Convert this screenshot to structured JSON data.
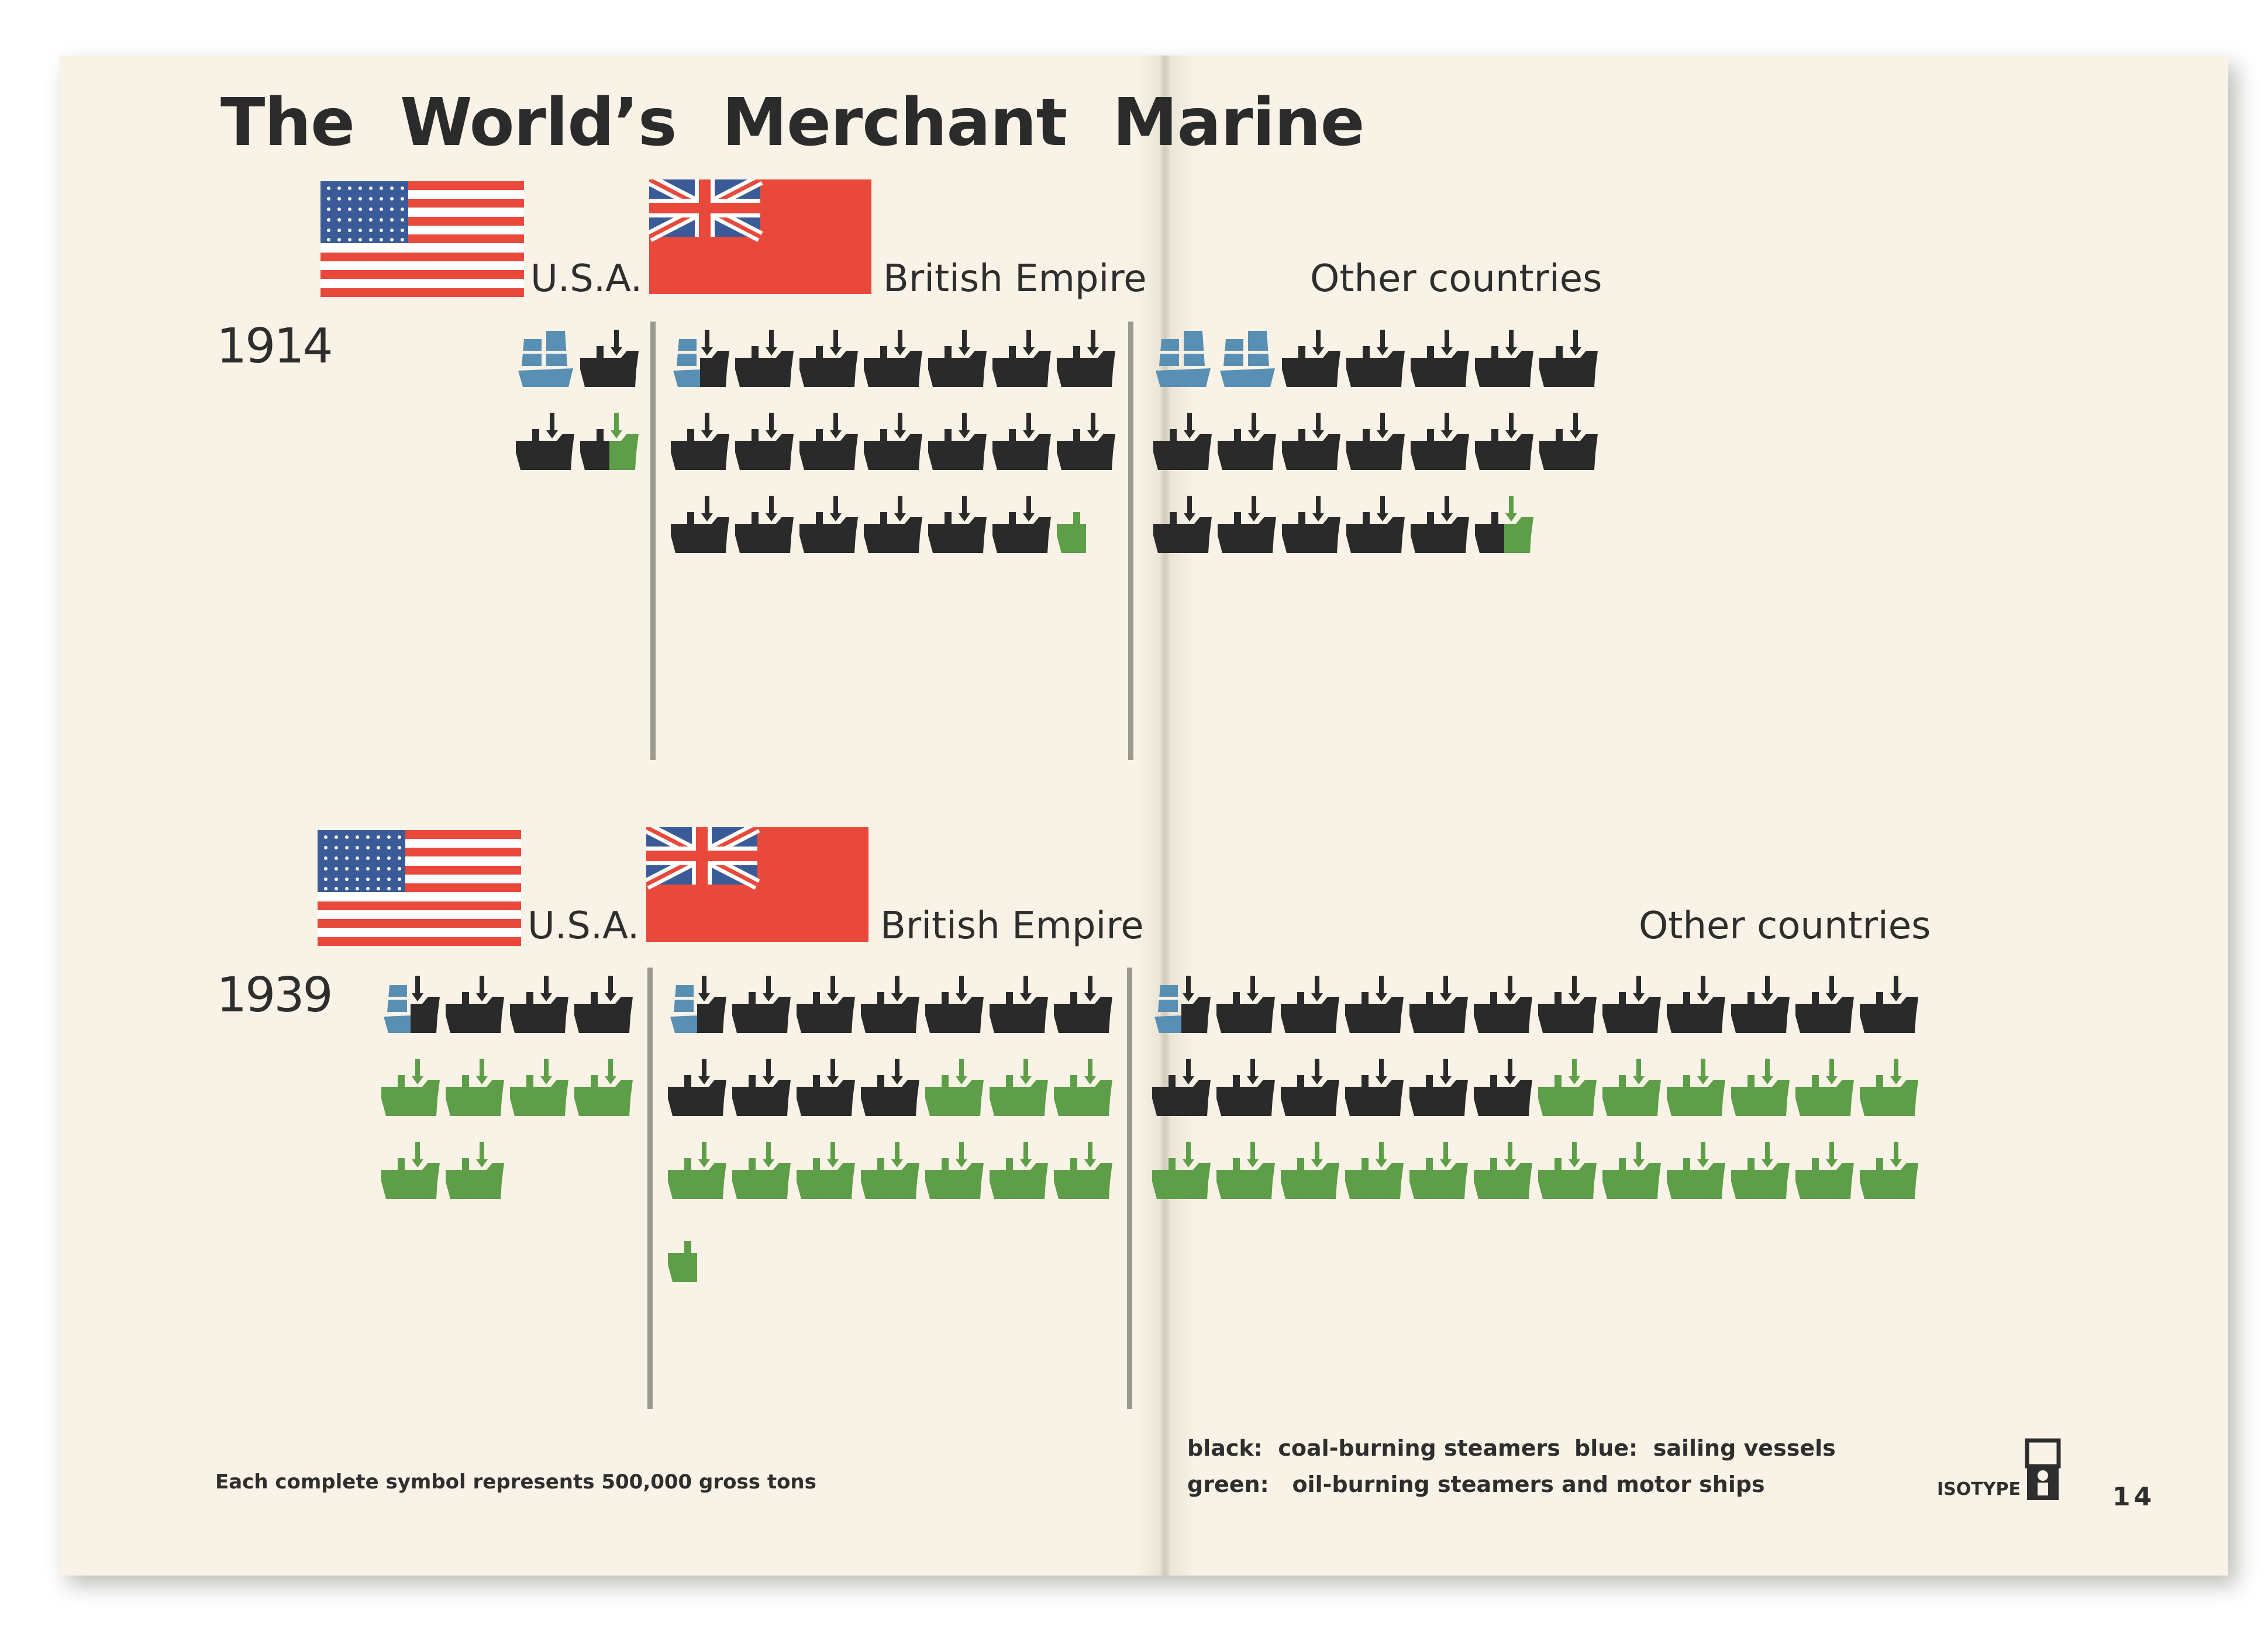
{
  "title": "The World’s Merchant Marine",
  "page_number": "14",
  "isotype_label": "ISOTYPE",
  "footnote": "Each complete symbol represents 500,000 gross tons",
  "legend": {
    "black": {
      "key": "black:",
      "text": "coal-burning steamers"
    },
    "blue": {
      "key": "blue:",
      "text": "sailing vessels"
    },
    "green": {
      "key": "green:",
      "text": "oil-burning steamers and motor ships"
    }
  },
  "colors": {
    "black": "#2a2a2a",
    "blue": "#5a8fb4",
    "green": "#5e9e48",
    "flag_red": "#e8493a",
    "flag_blue": "#3a5b97",
    "divider": "#9a9a90",
    "paper": "#f8f3e6"
  },
  "icons": {
    "steamer": "steamship-icon",
    "sail": "sailing-ship-icon",
    "us_flag": "us-flag-icon",
    "uk_flag": "red-ensign-flag-icon",
    "isotype": "isotype-logo-icon"
  },
  "chart_data": {
    "type": "isotype",
    "unit": "500,000 gross tons",
    "periods": [
      {
        "year": "1914",
        "groups": [
          {
            "label": "U.S.A.",
            "flag": "us",
            "cols": 2,
            "composition": {
              "coal": 2.5,
              "sail": 1.0,
              "oil": 0.5
            }
          },
          {
            "label": "British Empire",
            "flag": "uk",
            "cols": 7,
            "composition": {
              "coal": 19.5,
              "sail": 0.5,
              "oil": 0.5
            }
          },
          {
            "label": "Other countries",
            "flag": null,
            "cols": 7,
            "composition": {
              "coal": 17.5,
              "sail": 2.0,
              "oil": 0.5
            }
          }
        ]
      },
      {
        "year": "1939",
        "groups": [
          {
            "label": "U.S.A.",
            "flag": "us",
            "cols": 4,
            "composition": {
              "coal": 3.5,
              "sail": 0.5,
              "oil": 6.0
            }
          },
          {
            "label": "British Empire",
            "flag": "uk",
            "cols": 7,
            "composition": {
              "coal": 10.5,
              "sail": 0.5,
              "oil": 10.5
            }
          },
          {
            "label": "Other countries",
            "flag": null,
            "cols": 12,
            "composition": {
              "coal": 17.5,
              "sail": 0.5,
              "oil": 18.0
            }
          }
        ]
      }
    ]
  }
}
